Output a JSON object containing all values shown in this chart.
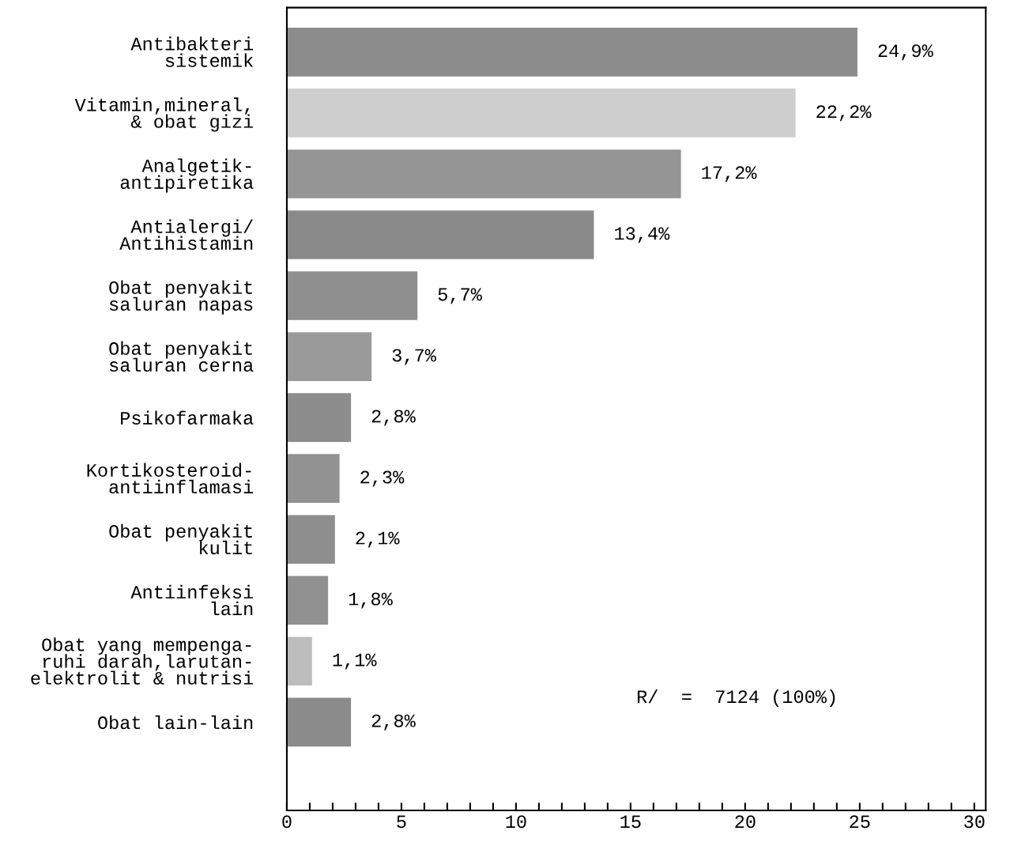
{
  "chart_data": {
    "type": "bar",
    "orientation": "horizontal",
    "categories": [
      "Antibakteri\nsistemik",
      "Vitamin,mineral,\n& obat gizi",
      "Analgetik-\nantipiretika",
      "Antialergi/\nAntihistamin",
      "Obat penyakit\nsaluran napas",
      "Obat penyakit\nsaluran cerna",
      "Psikofarmaka",
      "Kortikosteroid-\nantiinflamasi",
      "Obat penyakit\nkulit",
      "Antiinfeksi\nlain",
      "Obat yang mempenga-\nruhi darah,larutan-\nelektrolit & nutrisi",
      "Obat lain-lain"
    ],
    "values": [
      24.9,
      22.2,
      17.2,
      13.4,
      5.7,
      3.7,
      2.8,
      2.3,
      2.1,
      1.8,
      1.1,
      2.8
    ],
    "value_labels": [
      "24,9%",
      "22,2%",
      "17,2%",
      "13,4%",
      "5,7%",
      "3,7%",
      "2,8%",
      "2,3%",
      "2,1%",
      "1,8%",
      "1,1%",
      "2,8%"
    ],
    "colors": [
      "#8c8c8c",
      "#cfcfcf",
      "#959595",
      "#8a8a8a",
      "#8f8f8f",
      "#9a9a9a",
      "#8d8d8d",
      "#929292",
      "#8e8e8e",
      "#909090",
      "#bdbdbd",
      "#8b8b8b"
    ],
    "xlim": [
      0,
      30.5
    ],
    "xticks": [
      0,
      {
        "value": 1,
        "label": null
      },
      {
        "value": 2,
        "label": null
      },
      {
        "value": 3,
        "label": null
      },
      {
        "value": 4,
        "label": null
      },
      5,
      {
        "value": 6,
        "label": null
      },
      {
        "value": 7,
        "label": null
      },
      {
        "value": 8,
        "label": null
      },
      {
        "value": 9,
        "label": null
      },
      10,
      {
        "value": 11,
        "label": null
      },
      {
        "value": 12,
        "label": null
      },
      {
        "value": 13,
        "label": null
      },
      {
        "value": 14,
        "label": null
      },
      15,
      {
        "value": 16,
        "label": null
      },
      {
        "value": 17,
        "label": null
      },
      {
        "value": 18,
        "label": null
      },
      {
        "value": 19,
        "label": null
      },
      20,
      {
        "value": 21,
        "label": null
      },
      {
        "value": 22,
        "label": null
      },
      {
        "value": 23,
        "label": null
      },
      {
        "value": 24,
        "label": null
      },
      25,
      {
        "value": 26,
        "label": null
      },
      {
        "value": 27,
        "label": null
      },
      {
        "value": 28,
        "label": null
      },
      {
        "value": 29,
        "label": null
      },
      30
    ],
    "grid": false,
    "legend": false,
    "annotations": [
      "R/  =  7124 (100%)"
    ]
  }
}
